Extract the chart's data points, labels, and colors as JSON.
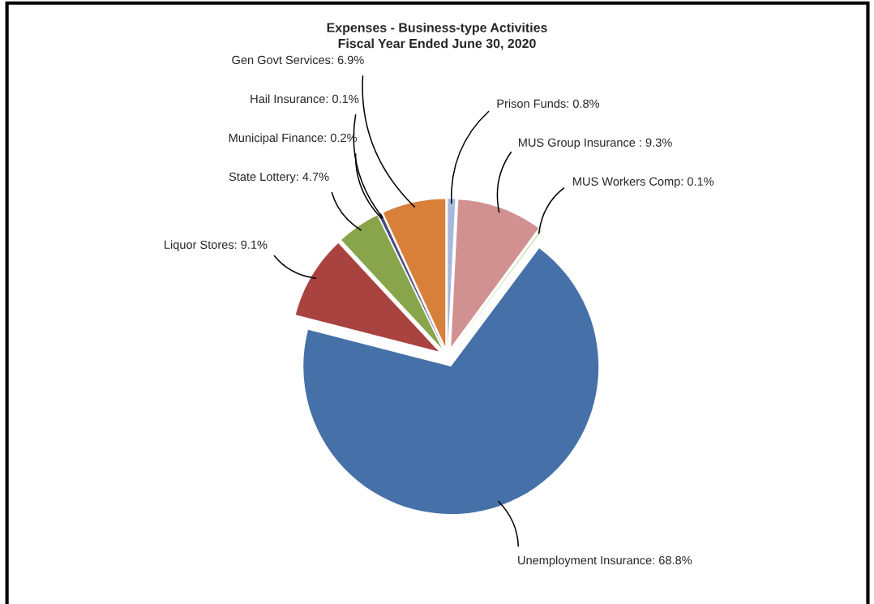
{
  "chart_data": {
    "type": "pie",
    "title": "Expenses - Business-type Activities\nFiscal Year Ended June 30, 2020",
    "categories": [
      "Prison Funds: 0.8%",
      "MUS Group Insurance : 9.3%",
      "MUS Workers Comp: 0.1%",
      "Unemployment Insurance: 68.8%",
      "Liquor Stores: 9.1%",
      "State Lottery: 4.7%",
      "Municipal Finance: 0.2%",
      "Hail Insurance: 0.1%",
      "Gen Govt Services: 6.9%"
    ],
    "values": [
      0.8,
      9.3,
      0.1,
      68.8,
      9.1,
      4.7,
      0.2,
      0.1,
      6.9
    ],
    "colors": [
      "#a5b8dd",
      "#d09190",
      "#b5d88a",
      "#4571a8",
      "#a84340",
      "#88a54b",
      "#3c3f92",
      "#1f1f3f",
      "#d8803a"
    ],
    "legend": false
  }
}
